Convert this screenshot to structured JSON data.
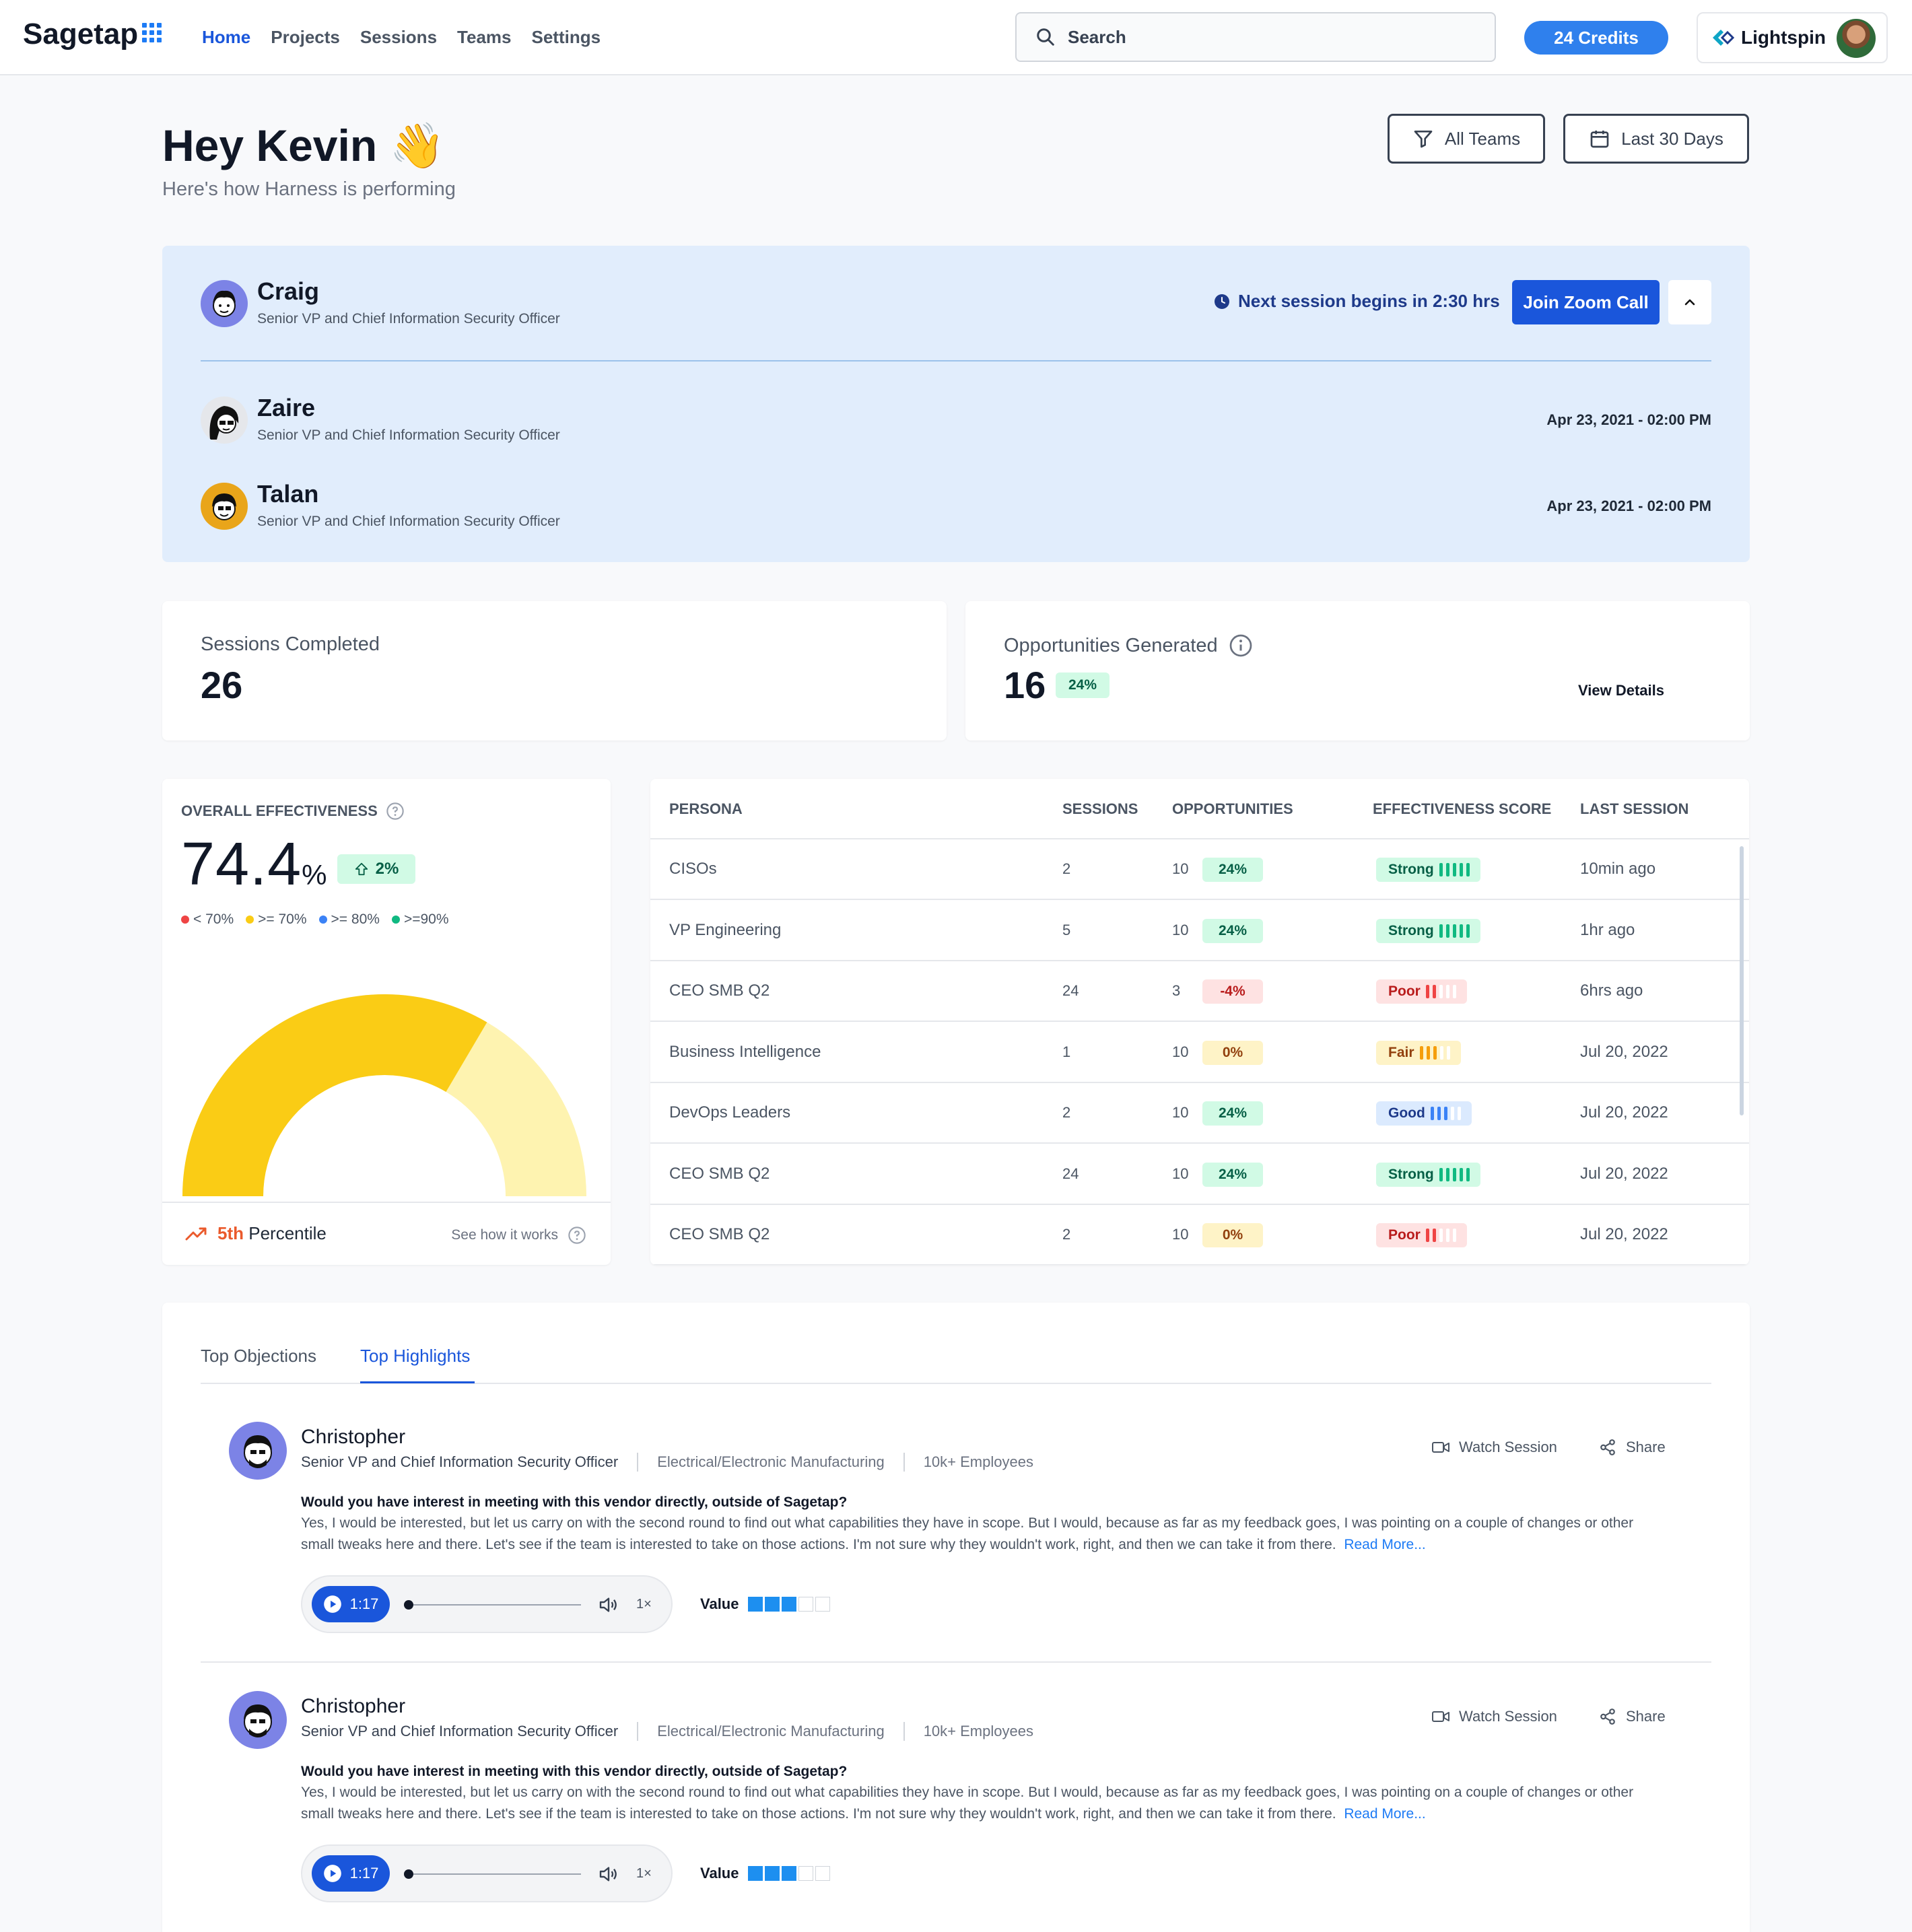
{
  "nav": {
    "logo": "Sagetap",
    "links": [
      "Home",
      "Projects",
      "Sessions",
      "Teams",
      "Settings"
    ],
    "search_placeholder": "Search",
    "credits": "24 Credits",
    "org": "Lightspin"
  },
  "header": {
    "greeting": "Hey Kevin 👋",
    "subtitle": "Here's how Harness is performing",
    "filter_teams": "All Teams",
    "filter_dates": "Last 30 Days"
  },
  "upcoming": {
    "next_session": "Next session begins in 2:30 hrs",
    "join_label": "Join Zoom Call",
    "people": [
      {
        "name": "Craig",
        "title": "Senior VP and Chief Information Security Officer",
        "time": ""
      },
      {
        "name": "Zaire",
        "title": "Senior VP and Chief Information Security Officer",
        "time": "Apr 23, 2021 - 02:00 PM"
      },
      {
        "name": "Talan",
        "title": "Senior VP and Chief Information Security Officer",
        "time": "Apr 23, 2021 - 02:00 PM"
      }
    ]
  },
  "stats": {
    "sessions_label": "Sessions Completed",
    "sessions_value": "26",
    "opps_label": "Opportunities Generated",
    "opps_value": "16",
    "opps_change": "24%",
    "view_details": "View Details"
  },
  "effectiveness": {
    "label": "OVERALL EFFECTIVENESS",
    "value": "74.4",
    "unit": "%",
    "change": "2%",
    "gauge_fraction": 0.744,
    "legend": [
      "< 70%",
      ">= 70%",
      ">= 80%",
      ">=90%"
    ],
    "legend_colors": [
      "#ef4444",
      "#facc15",
      "#3b82f6",
      "#10b981"
    ],
    "percentile": "5th",
    "percentile_label": "Percentile",
    "see_how": "See how it works"
  },
  "table": {
    "headers": [
      "PERSONA",
      "SESSIONS",
      "OPPORTUNITIES",
      "EFFECTIVENESS SCORE",
      "LAST SESSION"
    ],
    "rows": [
      {
        "persona": "CISOs",
        "sessions": "2",
        "opps": "10",
        "change": "24%",
        "tone": "green",
        "score": "Strong",
        "level": 5,
        "last": "10min ago"
      },
      {
        "persona": "VP Engineering",
        "sessions": "5",
        "opps": "10",
        "change": "24%",
        "tone": "green",
        "score": "Strong",
        "level": 5,
        "last": "1hr ago"
      },
      {
        "persona": "CEO SMB Q2",
        "sessions": "24",
        "opps": "3",
        "change": "-4%",
        "tone": "red",
        "score": "Poor",
        "level": 2,
        "last": "6hrs ago"
      },
      {
        "persona": "Business Intelligence",
        "sessions": "1",
        "opps": "10",
        "change": "0%",
        "tone": "yellow",
        "score": "Fair",
        "level": 3,
        "last": "Jul 20, 2022"
      },
      {
        "persona": "DevOps Leaders",
        "sessions": "2",
        "opps": "10",
        "change": "24%",
        "tone": "green",
        "score": "Good",
        "level": 3,
        "last": "Jul 20, 2022"
      },
      {
        "persona": "CEO SMB Q2",
        "sessions": "24",
        "opps": "10",
        "change": "24%",
        "tone": "green",
        "score": "Strong",
        "level": 5,
        "last": "Jul 20, 2022"
      },
      {
        "persona": "CEO SMB Q2",
        "sessions": "2",
        "opps": "10",
        "change": "0%",
        "tone": "yellow",
        "score": "Poor",
        "level": 2,
        "last": "Jul 20, 2022"
      }
    ]
  },
  "highlights": {
    "tabs": [
      "Top Objections",
      "Top Highlights"
    ],
    "watch_label": "Watch Session",
    "share_label": "Share",
    "value_label": "Value",
    "items": [
      {
        "name": "Christopher",
        "title": "Senior VP and Chief Information Security Officer",
        "industry": "Electrical/Electronic Manufacturing",
        "size": "10k+ Employees",
        "question": "Would you have interest in meeting with this vendor directly, outside of Sagetap?",
        "answer": "Yes, I would be interested, but let us carry on with the second round to find out what capabilities they have in scope. But I would, because as far as my feedback goes, I was pointing on a couple of changes or other small tweaks here and there. Let's see if the team is interested to take on those actions. I'm not sure why they wouldn't work, right, and then we can take it from there.",
        "read_more": "Read More...",
        "duration": "1:17",
        "speed": "1×",
        "value_level": 3
      },
      {
        "name": "Christopher",
        "title": "Senior VP and Chief Information Security Officer",
        "industry": "Electrical/Electronic Manufacturing",
        "size": "10k+ Employees",
        "question": "Would you have interest in meeting with this vendor directly, outside of Sagetap?",
        "answer": "Yes, I would be interested, but let us carry on with the second round to find out what capabilities they have in scope. But I would, because as far as my feedback goes, I was pointing on a couple of changes or other small tweaks here and there. Let's see if the team is interested to take on those actions. I'm not sure why they wouldn't work, right, and then we can take it from there.",
        "read_more": "Read More...",
        "duration": "1:17",
        "speed": "1×",
        "value_level": 3
      }
    ]
  }
}
